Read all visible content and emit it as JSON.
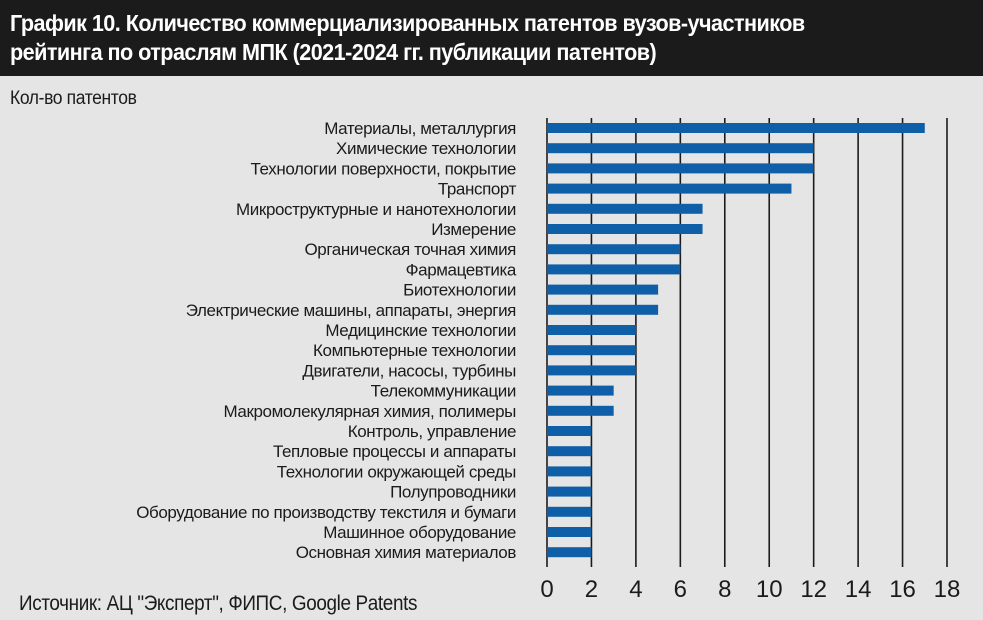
{
  "header": {
    "title": "График 10. Количество коммерциализированных патентов вузов-участников\nрейтинга по отраслям МПК (2021-2024 гг. публикации патентов)"
  },
  "source": "Источник: АЦ \"Эксперт\", ФИПС, Google Patents",
  "colors": {
    "bar": "#0f5fa8",
    "header_bg": "#1b1b1b",
    "plot_bg": "#e5e5e5",
    "grid": "#1b1b1b"
  },
  "chart_data": {
    "type": "bar",
    "orientation": "horizontal",
    "title": "График 10. Количество коммерциализированных патентов вузов-участников рейтинга по отраслям МПК (2021-2024 гг. публикации патентов)",
    "ylabel": "Кол-во патентов",
    "xlim": [
      0,
      18
    ],
    "xticks": [
      0,
      2,
      4,
      6,
      8,
      10,
      12,
      14,
      16,
      18
    ],
    "grid": "vertical",
    "categories": [
      "Материалы, металлургия",
      "Химические технологии",
      "Технологии поверхности, покрытие",
      "Транспорт",
      "Микроструктурные и нанотехнологии",
      "Измерение",
      "Органическая точная химия",
      "Фармацевтика",
      "Биотехнологии",
      "Электрические машины, аппараты, энергия",
      "Медицинские технологии",
      "Компьютерные технологии",
      "Двигатели, насосы, турбины",
      "Телекоммуникации",
      "Макромолекулярная химия, полимеры",
      "Контроль, управление",
      "Тепловые процессы и аппараты",
      "Технологии окружающей среды",
      "Полупроводники",
      "Оборудование по производству текстиля и бумаги",
      "Машинное оборудование",
      "Основная химия материалов"
    ],
    "values": [
      17,
      12,
      12,
      11,
      7,
      7,
      6,
      6,
      5,
      5,
      4,
      4,
      4,
      3,
      3,
      2,
      2,
      2,
      2,
      2,
      2,
      2
    ]
  }
}
